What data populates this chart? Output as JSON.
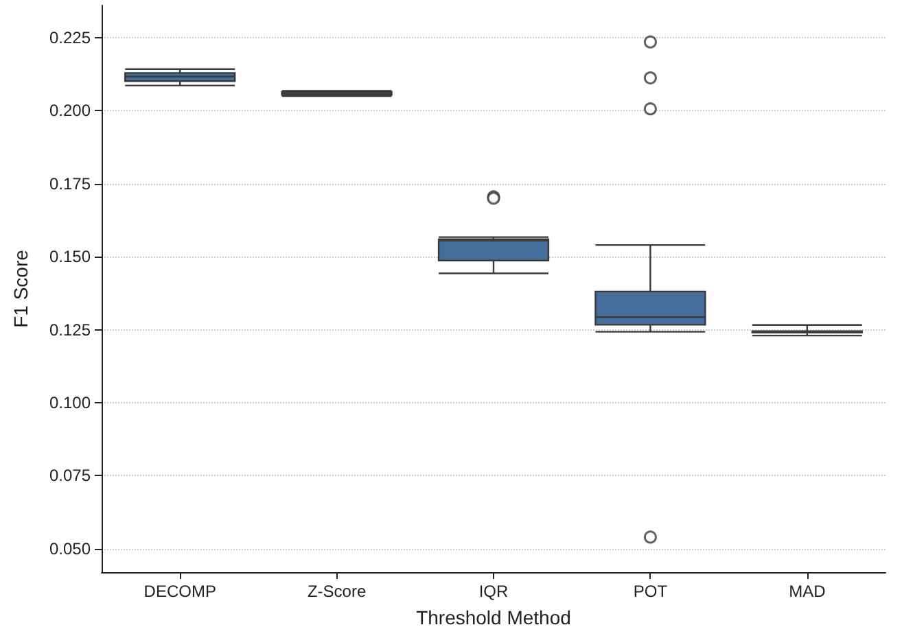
{
  "chart_data": {
    "type": "box",
    "xlabel": "Threshold Method",
    "ylabel": "F1 Score",
    "categories": [
      "DECOMP",
      "Z-Score",
      "IQR",
      "POT",
      "MAD"
    ],
    "series": [
      {
        "color": "#456d9b",
        "boxes": [
          {
            "low": 0.2086,
            "q1": 0.2101,
            "median": 0.2117,
            "q3": 0.2129,
            "high": 0.2142
          },
          {
            "low": 0.205,
            "q1": 0.2054,
            "median": 0.2058,
            "q3": 0.2064,
            "high": 0.2068
          },
          {
            "low": 0.1443,
            "q1": 0.1487,
            "median": 0.1555,
            "q3": 0.156,
            "high": 0.1567,
            "outliers": [
              0.1705,
              0.17
            ]
          },
          {
            "low": 0.1243,
            "q1": 0.1267,
            "median": 0.1293,
            "q3": 0.1381,
            "high": 0.154,
            "outliers": [
              0.2235,
              0.2112,
              0.2006,
              0.054
            ]
          },
          {
            "low": 0.123,
            "q1": 0.124,
            "median": 0.1242,
            "q3": 0.1245,
            "high": 0.1266
          }
        ]
      }
    ],
    "ylim": [
      0.042,
      0.236
    ],
    "yticks": [
      {
        "value": 0.05,
        "label": "0.050"
      },
      0.075,
      {
        "value": 0.1,
        "label": "0.100"
      },
      0.125,
      {
        "value": 0.15,
        "label": "0.150"
      },
      0.175,
      {
        "value": 0.2,
        "label": "0.200"
      },
      0.225
    ],
    "grid": "y"
  }
}
